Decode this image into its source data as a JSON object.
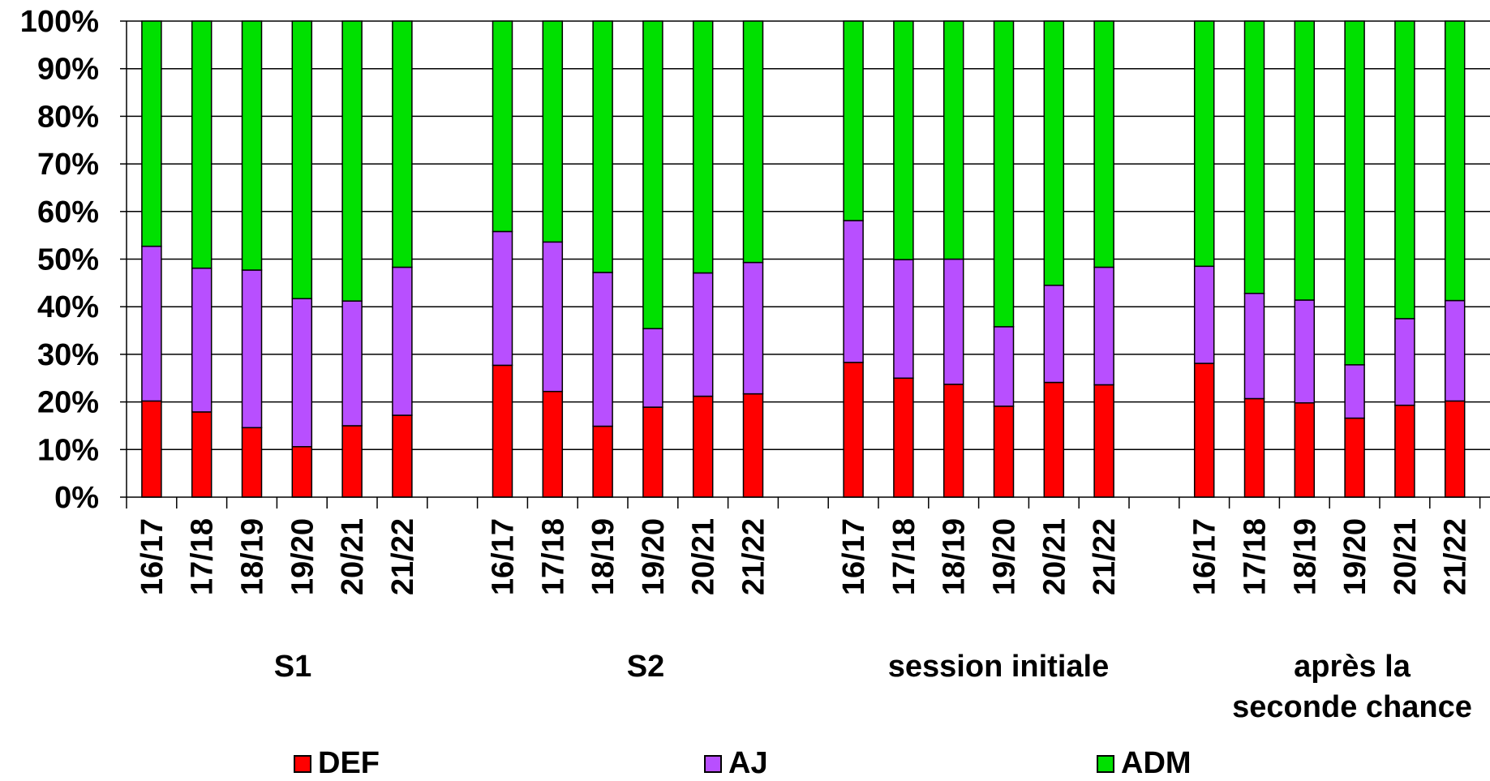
{
  "chart_data": {
    "type": "bar",
    "stacked": "percent",
    "ylim": [
      0,
      100
    ],
    "yticks": [
      "0%",
      "10%",
      "20%",
      "30%",
      "40%",
      "50%",
      "60%",
      "70%",
      "80%",
      "90%",
      "100%"
    ],
    "grid": true,
    "legend_position": "bottom",
    "groups": [
      {
        "name": "S1",
        "categories": [
          "16/17",
          "17/18",
          "18/19",
          "19/20",
          "20/21",
          "21/22"
        ]
      },
      {
        "name": "S2",
        "categories": [
          "16/17",
          "17/18",
          "18/19",
          "19/20",
          "20/21",
          "21/22"
        ]
      },
      {
        "name": "session initiale",
        "categories": [
          "16/17",
          "17/18",
          "18/19",
          "19/20",
          "20/21",
          "21/22"
        ]
      },
      {
        "name": "après la seconde chance",
        "categories": [
          "16/17",
          "17/18",
          "18/19",
          "19/20",
          "20/21",
          "21/22"
        ]
      }
    ],
    "series": [
      {
        "name": "DEF",
        "color": "#ff0000",
        "values": [
          20.2,
          17.9,
          14.6,
          10.6,
          15.0,
          17.2,
          27.7,
          22.2,
          14.9,
          18.9,
          21.2,
          21.7,
          28.3,
          25.0,
          23.7,
          19.1,
          24.1,
          23.6,
          28.1,
          20.7,
          19.8,
          16.6,
          19.3,
          20.2
        ]
      },
      {
        "name": "AJ",
        "color": "#b84fff",
        "values": [
          32.5,
          30.2,
          33.1,
          31.1,
          26.2,
          31.1,
          28.1,
          31.4,
          32.3,
          16.5,
          25.9,
          27.6,
          29.8,
          24.9,
          26.3,
          16.7,
          20.4,
          24.7,
          20.4,
          22.1,
          21.6,
          11.2,
          18.2,
          21.1
        ]
      },
      {
        "name": "ADM",
        "color": "#00e000",
        "values": [
          47.3,
          51.9,
          52.3,
          58.3,
          58.8,
          51.7,
          44.2,
          46.4,
          52.8,
          64.6,
          52.9,
          50.7,
          41.9,
          50.1,
          50.0,
          64.2,
          55.5,
          51.7,
          51.5,
          57.2,
          58.6,
          72.2,
          62.5,
          58.7
        ]
      }
    ]
  },
  "legend": {
    "def": "DEF",
    "aj": "AJ",
    "adm": "ADM"
  },
  "group_labels": {
    "s1": "S1",
    "s2": "S2",
    "session_initiale": "session initiale",
    "seconde_line1": "après la",
    "seconde_line2": "seconde chance"
  }
}
